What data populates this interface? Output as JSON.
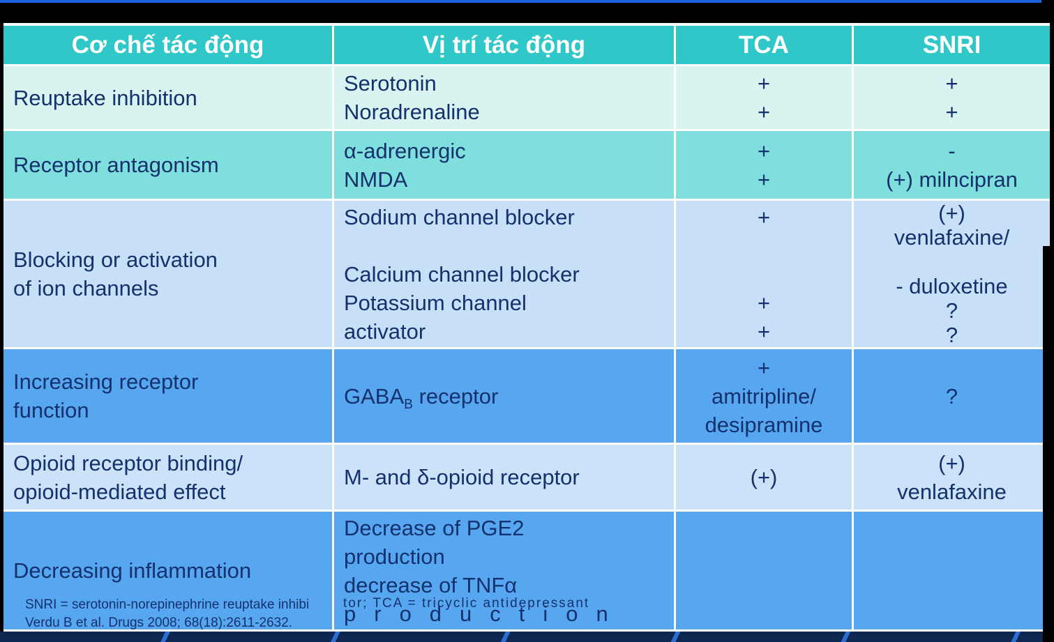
{
  "page": {
    "background_color": "#000000",
    "top_accent_color": "#1c64d9",
    "bottom_bar_color": "#0d2750",
    "bottom_bar_stripe_color": "#2b6fd4"
  },
  "colors": {
    "header_bg": "#2fc7c8",
    "header_text": "#ffffff",
    "cell_text": "#14316e"
  },
  "table": {
    "headers": [
      "Cơ chế tác động",
      "Vị trí tác động",
      "TCA",
      "SNRI"
    ],
    "rows": [
      {
        "bg": "#d9f3f0",
        "mechanism": [
          "Reuptake inhibition"
        ],
        "site": [
          "Serotonin",
          "Noradrenaline"
        ],
        "tca": [
          "+",
          "+"
        ],
        "snri": [
          "+",
          "+"
        ]
      },
      {
        "bg": "#7fdfdc",
        "mechanism": [
          "Receptor antagonism"
        ],
        "site": [
          "α-adrenergic",
          "NMDA"
        ],
        "tca": [
          "+",
          "+"
        ],
        "snri": [
          "-",
          "(+) milncipran"
        ]
      },
      {
        "bg": "#c7dff7",
        "mechanism": [
          "Blocking or activation",
          "of ion channels"
        ],
        "site": [
          "Sodium channel blocker",
          "",
          "Calcium channel blocker",
          "Potassium channel",
          "activator"
        ],
        "tca": [
          "+",
          "",
          "",
          "+",
          "+"
        ],
        "snri": [
          "(+)",
          "venlafaxine/",
          "",
          "- duloxetine",
          "?",
          "?"
        ]
      },
      {
        "bg": "#57a7f0",
        "mechanism": [
          "Increasing receptor",
          "function"
        ],
        "site_prefix": "GABA",
        "site_sub": "B",
        "site_suffix": " receptor",
        "tca": [
          "+",
          "amitripline/",
          "desipramine"
        ],
        "snri": [
          "?"
        ]
      },
      {
        "bg": "#cbe2f9",
        "mechanism": [
          "Opioid receptor binding/",
          "opioid-mediated effect"
        ],
        "site": [
          "M- and δ-opioid receptor"
        ],
        "tca": [
          "(+)"
        ],
        "snri": [
          "(+)",
          "venlafaxine"
        ]
      },
      {
        "bg": "#57a7f0",
        "mechanism": [
          "Decreasing inflammation"
        ],
        "site": [
          "Decrease of PGE2",
          "production",
          "decrease of TNFα",
          "production"
        ],
        "tca": [],
        "snri": []
      }
    ]
  },
  "footnote": {
    "line1_left": "SNRI = serotonin-norepinephrine reuptake inhibi",
    "line1_right": "tor; TCA = tricyclic antidepressant",
    "line2": "Verdu B et al. Drugs 2008; 68(18):2611-2632."
  }
}
